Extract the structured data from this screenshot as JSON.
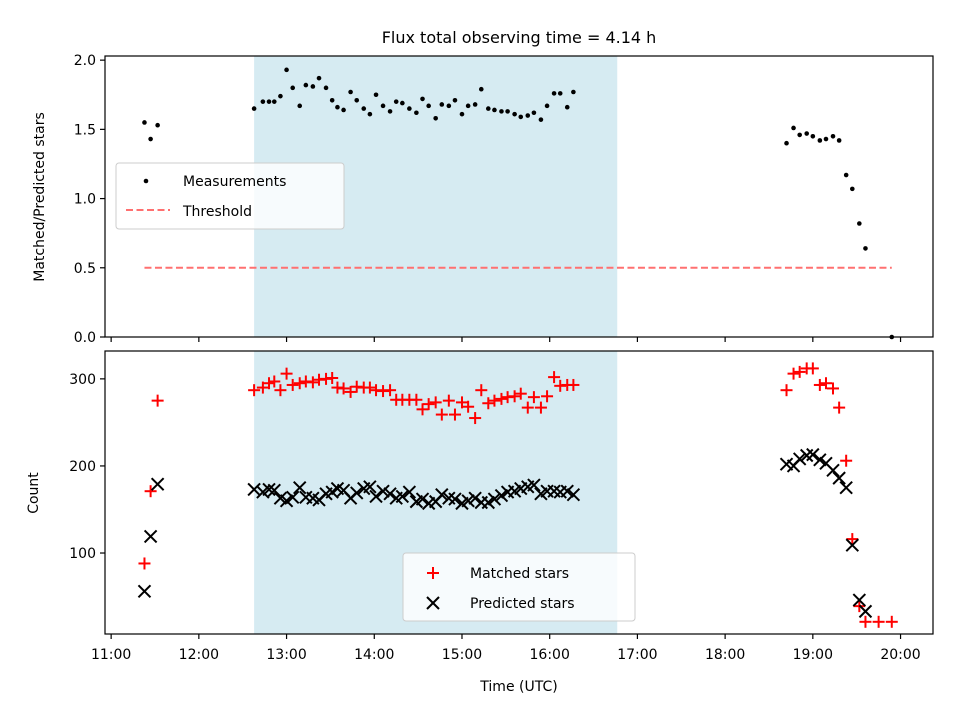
{
  "figure": {
    "title": "Flux total observing time = 4.14 h"
  },
  "chart_data": [
    {
      "type": "scatter",
      "panel": "top",
      "ylabel": "Matched/Predicted stars",
      "xlabel": "",
      "x_unit": "hours (UTC)",
      "xlim": [
        10.93,
        20.37
      ],
      "ylim": [
        0,
        2.03
      ],
      "yticks": [
        0.0,
        0.5,
        1.0,
        1.5,
        2.0
      ],
      "ytick_labels": [
        "0.0",
        "0.5",
        "1.0",
        "1.5",
        "2.0"
      ],
      "xticks": [
        11,
        12,
        13,
        14,
        15,
        16,
        17,
        18,
        19,
        20
      ],
      "shaded_region": {
        "x_start": 12.63,
        "x_end": 16.77,
        "color": "#add8e6"
      },
      "legend": {
        "placement": "center-left",
        "entries": [
          "Measurements",
          "Threshold"
        ]
      },
      "series": [
        {
          "name": "Measurements",
          "color": "#000000",
          "marker": "dot",
          "points": [
            [
              11.38,
              1.55
            ],
            [
              11.45,
              1.43
            ],
            [
              11.53,
              1.53
            ],
            [
              12.63,
              1.65
            ],
            [
              12.73,
              1.7
            ],
            [
              12.8,
              1.7
            ],
            [
              12.86,
              1.7
            ],
            [
              12.93,
              1.74
            ],
            [
              13.0,
              1.93
            ],
            [
              13.07,
              1.8
            ],
            [
              13.15,
              1.67
            ],
            [
              13.22,
              1.82
            ],
            [
              13.3,
              1.81
            ],
            [
              13.37,
              1.87
            ],
            [
              13.45,
              1.8
            ],
            [
              13.52,
              1.71
            ],
            [
              13.58,
              1.66
            ],
            [
              13.65,
              1.64
            ],
            [
              13.73,
              1.77
            ],
            [
              13.8,
              1.71
            ],
            [
              13.88,
              1.65
            ],
            [
              13.95,
              1.61
            ],
            [
              14.02,
              1.75
            ],
            [
              14.1,
              1.67
            ],
            [
              14.18,
              1.63
            ],
            [
              14.25,
              1.7
            ],
            [
              14.32,
              1.69
            ],
            [
              14.4,
              1.65
            ],
            [
              14.48,
              1.62
            ],
            [
              14.55,
              1.72
            ],
            [
              14.62,
              1.67
            ],
            [
              14.7,
              1.58
            ],
            [
              14.77,
              1.68
            ],
            [
              14.85,
              1.67
            ],
            [
              14.92,
              1.71
            ],
            [
              15.0,
              1.61
            ],
            [
              15.07,
              1.67
            ],
            [
              15.15,
              1.68
            ],
            [
              15.22,
              1.79
            ],
            [
              15.3,
              1.65
            ],
            [
              15.37,
              1.64
            ],
            [
              15.45,
              1.63
            ],
            [
              15.52,
              1.63
            ],
            [
              15.6,
              1.61
            ],
            [
              15.67,
              1.59
            ],
            [
              15.75,
              1.6
            ],
            [
              15.82,
              1.62
            ],
            [
              15.9,
              1.57
            ],
            [
              15.97,
              1.67
            ],
            [
              16.05,
              1.76
            ],
            [
              16.12,
              1.76
            ],
            [
              16.2,
              1.66
            ],
            [
              16.27,
              1.77
            ],
            [
              18.7,
              1.4
            ],
            [
              18.78,
              1.51
            ],
            [
              18.85,
              1.46
            ],
            [
              18.93,
              1.47
            ],
            [
              19.0,
              1.45
            ],
            [
              19.08,
              1.42
            ],
            [
              19.15,
              1.43
            ],
            [
              19.23,
              1.45
            ],
            [
              19.3,
              1.42
            ],
            [
              19.38,
              1.17
            ],
            [
              19.45,
              1.07
            ],
            [
              19.53,
              0.82
            ],
            [
              19.6,
              0.64
            ],
            [
              19.9,
              0.0
            ]
          ]
        },
        {
          "name": "Threshold",
          "color": "#ff7070",
          "style": "dashed",
          "x": [
            11.38,
            19.9
          ],
          "y": [
            0.5,
            0.5
          ]
        }
      ]
    },
    {
      "type": "scatter",
      "panel": "bottom",
      "ylabel": "Count",
      "xlabel": "Time (UTC)",
      "xlim": [
        10.93,
        20.37
      ],
      "ylim": [
        7,
        332
      ],
      "yticks": [
        100,
        200,
        300
      ],
      "ytick_labels": [
        "100",
        "200",
        "300"
      ],
      "xticks": [
        11,
        12,
        13,
        14,
        15,
        16,
        17,
        18,
        19,
        20
      ],
      "xtick_labels": [
        "11:00",
        "12:00",
        "13:00",
        "14:00",
        "15:00",
        "16:00",
        "17:00",
        "18:00",
        "19:00",
        "20:00"
      ],
      "shaded_region": {
        "x_start": 12.63,
        "x_end": 16.77,
        "color": "#add8e6"
      },
      "legend": {
        "placement": "bottom-center",
        "entries": [
          "Matched stars",
          "Predicted stars"
        ]
      },
      "series": [
        {
          "name": "Matched stars",
          "color": "#ff0000",
          "marker": "plus",
          "points": [
            [
              11.38,
              88
            ],
            [
              11.45,
              171
            ],
            [
              11.53,
              275
            ],
            [
              12.63,
              287
            ],
            [
              12.73,
              290
            ],
            [
              12.8,
              295
            ],
            [
              12.86,
              297
            ],
            [
              12.93,
              287
            ],
            [
              13.0,
              306
            ],
            [
              13.07,
              293
            ],
            [
              13.15,
              295
            ],
            [
              13.22,
              297
            ],
            [
              13.3,
              296
            ],
            [
              13.37,
              299
            ],
            [
              13.45,
              300
            ],
            [
              13.52,
              301
            ],
            [
              13.58,
              290
            ],
            [
              13.65,
              289
            ],
            [
              13.73,
              285
            ],
            [
              13.8,
              291
            ],
            [
              13.88,
              290
            ],
            [
              13.95,
              290
            ],
            [
              14.02,
              287
            ],
            [
              14.1,
              286
            ],
            [
              14.18,
              287
            ],
            [
              14.25,
              276
            ],
            [
              14.32,
              276
            ],
            [
              14.4,
              276
            ],
            [
              14.48,
              276
            ],
            [
              14.55,
              265
            ],
            [
              14.62,
              271
            ],
            [
              14.7,
              273
            ],
            [
              14.77,
              259
            ],
            [
              14.85,
              275
            ],
            [
              14.92,
              259
            ],
            [
              15.0,
              273
            ],
            [
              15.07,
              268
            ],
            [
              15.15,
              255
            ],
            [
              15.22,
              287
            ],
            [
              15.3,
              272
            ],
            [
              15.37,
              275
            ],
            [
              15.45,
              277
            ],
            [
              15.52,
              279
            ],
            [
              15.6,
              280
            ],
            [
              15.67,
              283
            ],
            [
              15.75,
              267
            ],
            [
              15.82,
              279
            ],
            [
              15.9,
              267
            ],
            [
              15.97,
              280
            ],
            [
              16.05,
              302
            ],
            [
              16.12,
              292
            ],
            [
              16.2,
              293
            ],
            [
              16.27,
              293
            ],
            [
              18.7,
              287
            ],
            [
              18.78,
              306
            ],
            [
              18.85,
              308
            ],
            [
              18.93,
              312
            ],
            [
              19.0,
              312
            ],
            [
              19.08,
              293
            ],
            [
              19.15,
              295
            ],
            [
              19.23,
              289
            ],
            [
              19.3,
              267
            ],
            [
              19.38,
              206
            ],
            [
              19.45,
              116
            ],
            [
              19.53,
              39
            ],
            [
              19.6,
              21
            ],
            [
              19.75,
              21
            ],
            [
              19.9,
              21
            ]
          ]
        },
        {
          "name": "Predicted stars",
          "color": "#000000",
          "marker": "x",
          "points": [
            [
              11.38,
              56
            ],
            [
              11.45,
              119
            ],
            [
              11.53,
              179
            ],
            [
              12.63,
              173
            ],
            [
              12.73,
              170
            ],
            [
              12.8,
              173
            ],
            [
              12.86,
              172
            ],
            [
              12.93,
              163
            ],
            [
              13.0,
              160
            ],
            [
              13.07,
              164
            ],
            [
              13.15,
              175
            ],
            [
              13.22,
              164
            ],
            [
              13.3,
              163
            ],
            [
              13.37,
              161
            ],
            [
              13.45,
              168
            ],
            [
              13.52,
              170
            ],
            [
              13.58,
              174
            ],
            [
              13.65,
              172
            ],
            [
              13.73,
              163
            ],
            [
              13.8,
              169
            ],
            [
              13.88,
              174
            ],
            [
              13.95,
              176
            ],
            [
              14.02,
              165
            ],
            [
              14.1,
              171
            ],
            [
              14.18,
              168
            ],
            [
              14.25,
              163
            ],
            [
              14.32,
              165
            ],
            [
              14.4,
              170
            ],
            [
              14.48,
              159
            ],
            [
              14.55,
              162
            ],
            [
              14.62,
              157
            ],
            [
              14.7,
              159
            ],
            [
              14.77,
              167
            ],
            [
              14.85,
              163
            ],
            [
              14.92,
              162
            ],
            [
              15.0,
              157
            ],
            [
              15.07,
              160
            ],
            [
              15.15,
              163
            ],
            [
              15.22,
              158
            ],
            [
              15.3,
              158
            ],
            [
              15.37,
              162
            ],
            [
              15.45,
              166
            ],
            [
              15.52,
              170
            ],
            [
              15.6,
              171
            ],
            [
              15.67,
              174
            ],
            [
              15.75,
              176
            ],
            [
              15.82,
              178
            ],
            [
              15.9,
              168
            ],
            [
              15.97,
              171
            ],
            [
              16.05,
              171
            ],
            [
              16.12,
              170
            ],
            [
              16.2,
              171
            ],
            [
              16.27,
              167
            ],
            [
              18.7,
              202
            ],
            [
              18.78,
              200
            ],
            [
              18.85,
              208
            ],
            [
              18.93,
              212
            ],
            [
              19.0,
              213
            ],
            [
              19.08,
              207
            ],
            [
              19.15,
              203
            ],
            [
              19.23,
              195
            ],
            [
              19.3,
              186
            ],
            [
              19.38,
              175
            ],
            [
              19.45,
              109
            ],
            [
              19.53,
              46
            ],
            [
              19.6,
              33
            ]
          ]
        }
      ]
    }
  ]
}
